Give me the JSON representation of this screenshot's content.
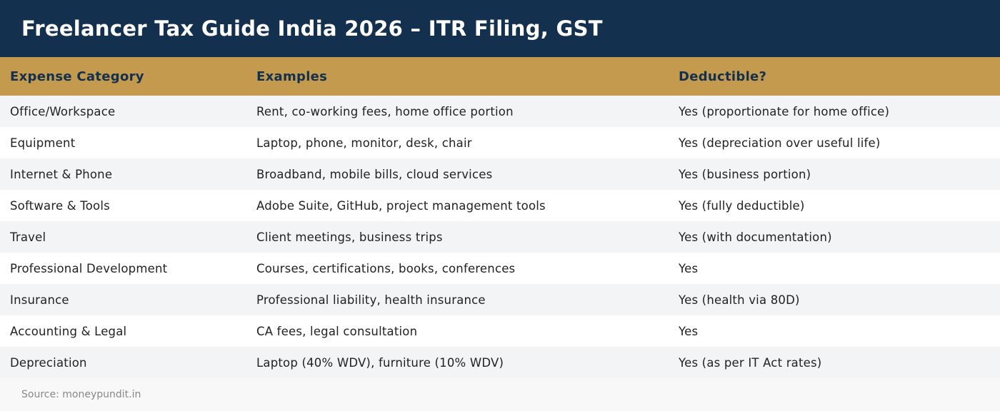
{
  "header": {
    "title": "Freelancer Tax Guide India 2026 – ITR Filing, GST"
  },
  "table": {
    "columns": [
      "Expense Category",
      "Examples",
      "Deductible?"
    ],
    "rows": [
      [
        "Office/Workspace",
        "Rent, co-working fees, home office portion",
        "Yes (proportionate for home office)"
      ],
      [
        "Equipment",
        "Laptop, phone, monitor, desk, chair",
        "Yes (depreciation over useful life)"
      ],
      [
        "Internet & Phone",
        "Broadband, mobile bills, cloud services",
        "Yes (business portion)"
      ],
      [
        "Software & Tools",
        "Adobe Suite, GitHub, project management tools",
        "Yes (fully deductible)"
      ],
      [
        "Travel",
        "Client meetings, business trips",
        "Yes (with documentation)"
      ],
      [
        "Professional Development",
        "Courses, certifications, books, conferences",
        "Yes"
      ],
      [
        "Insurance",
        "Professional liability, health insurance",
        "Yes (health via 80D)"
      ],
      [
        "Accounting & Legal",
        "CA fees, legal consultation",
        "Yes"
      ],
      [
        "Depreciation",
        "Laptop (40% WDV), furniture (10% WDV)",
        "Yes (as per IT Act rates)"
      ]
    ]
  },
  "footer": {
    "source": "Source: moneypundit.in"
  },
  "colors": {
    "header_bg": "#14304f",
    "table_header_bg": "#c49a4e",
    "row_alt_bg": "#f3f4f6"
  }
}
